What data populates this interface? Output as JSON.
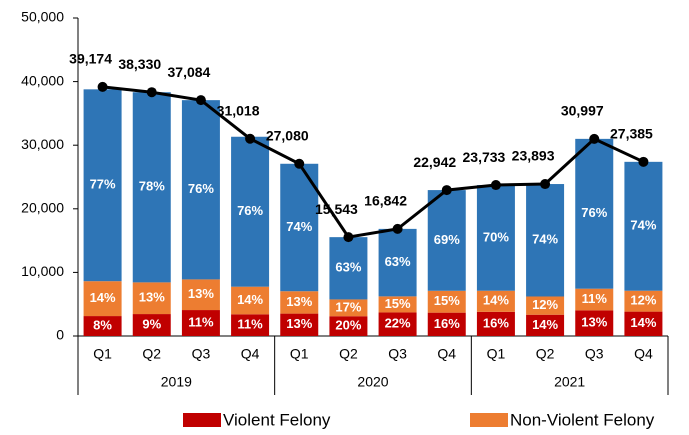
{
  "chart_data": {
    "type": "stacked_bar_line",
    "categories": [
      "Q1",
      "Q2",
      "Q3",
      "Q4",
      "Q1",
      "Q2",
      "Q3",
      "Q4",
      "Q1",
      "Q2",
      "Q3",
      "Q4"
    ],
    "groups": [
      "2019",
      "2020",
      "2021"
    ],
    "series": [
      {
        "name": "Violent Felony",
        "color": "#c00000",
        "values": [
          8,
          9,
          11,
          11,
          13,
          20,
          22,
          16,
          16,
          14,
          13,
          14
        ],
        "value_labels": [
          "8%",
          "9%",
          "11%",
          "11%",
          "13%",
          "20%",
          "22%",
          "16%",
          "16%",
          "14%",
          "13%",
          "14%"
        ]
      },
      {
        "name": "Non-Violent Felony",
        "color": "#ed7d31",
        "values": [
          14,
          13,
          13,
          14,
          13,
          17,
          15,
          15,
          14,
          12,
          11,
          12
        ],
        "value_labels": [
          "14%",
          "13%",
          "13%",
          "14%",
          "13%",
          "17%",
          "15%",
          "15%",
          "14%",
          "12%",
          "11%",
          "12%"
        ]
      },
      {
        "color": "#2e75b6",
        "values": [
          77,
          78,
          76,
          76,
          74,
          63,
          63,
          69,
          70,
          74,
          76,
          74
        ],
        "value_labels": [
          "77%",
          "78%",
          "76%",
          "76%",
          "74%",
          "63%",
          "63%",
          "69%",
          "70%",
          "74%",
          "76%",
          "74%"
        ]
      }
    ],
    "totals": {
      "color": "#000000",
      "values": [
        39174,
        38330,
        37084,
        31018,
        27080,
        15543,
        16842,
        22942,
        23733,
        23893,
        30997,
        27385
      ],
      "value_labels": [
        "39,174",
        "38,330",
        "37,084",
        "31,018",
        "27,080",
        "15,543",
        "16,842",
        "22,942",
        "23,733",
        "23,893",
        "30,997",
        "27,385"
      ]
    },
    "ylim": [
      0,
      50000
    ],
    "yticks": [
      0,
      {
        "value": 10000,
        "label": "10,000"
      },
      {
        "value": 20000,
        "label": "20,000"
      },
      {
        "value": 30000,
        "label": "30,000"
      },
      {
        "value": 40000,
        "label": "40,000"
      },
      {
        "value": 50000,
        "label": "50,000"
      }
    ]
  }
}
